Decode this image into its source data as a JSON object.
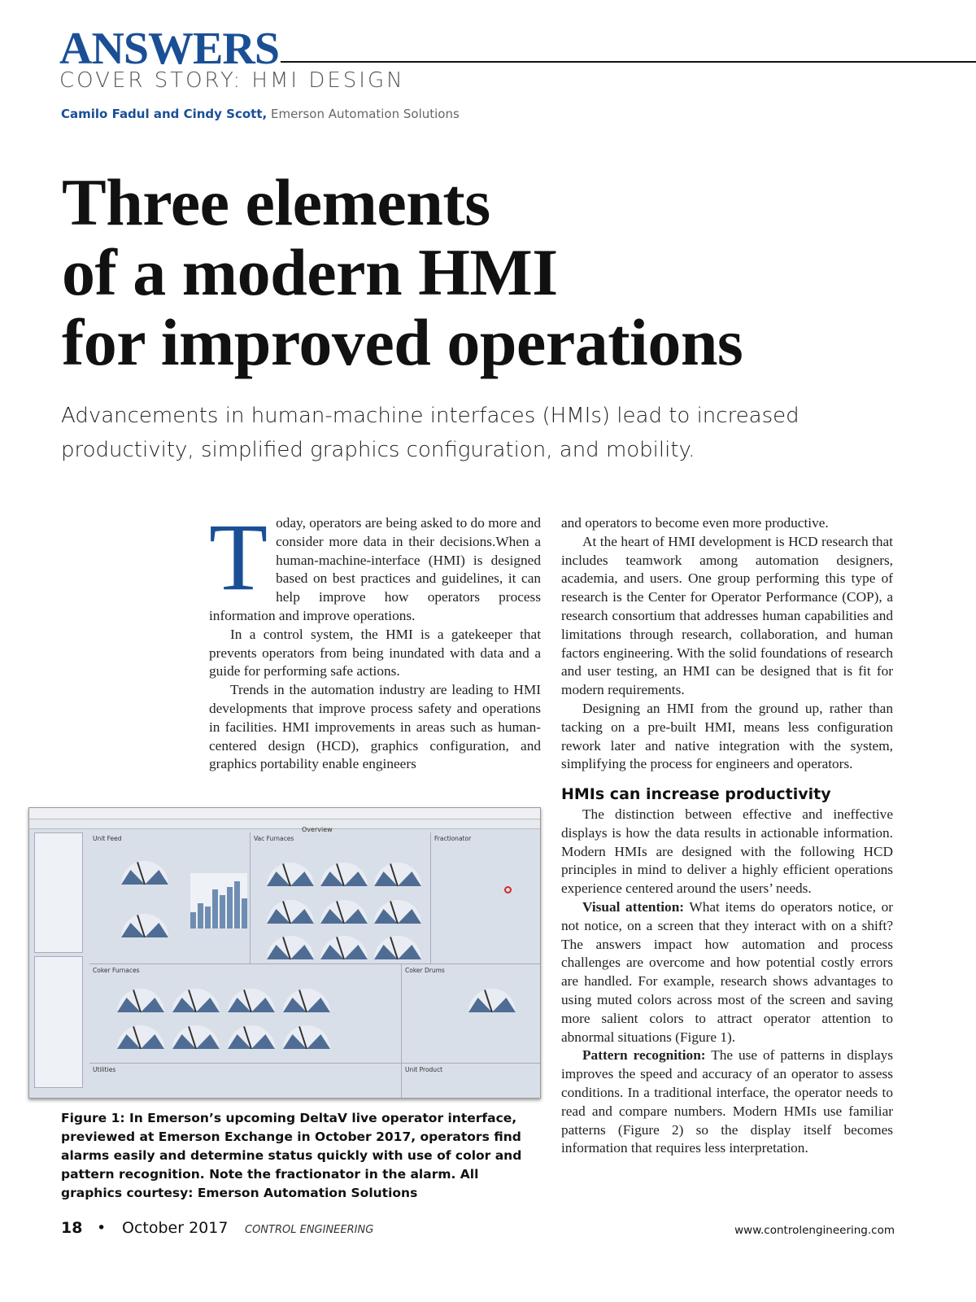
{
  "header": {
    "section": "ANSWERS",
    "kicker": "COVER STORY: HMI DESIGN",
    "authors": "Camilo Fadul and Cindy Scott,",
    "affiliation": "Emerson Automation Solutions"
  },
  "article": {
    "title_lines": [
      "Three elements",
      "of a modern HMI",
      "for improved operations"
    ],
    "deck": "Advancements in human-machine interfaces (HMIs) lead to increased productivity, simplified graphics configuration, and mobility.",
    "drop_cap": "T",
    "left_paragraphs": [
      "oday, operators are being asked to do more and consider more data in their decisions.When a human-machine-interface (HMI) is designed based on best practices and guidelines, it can help improve how operators process information and improve operations.",
      "In a control system, the HMI is a gatekeeper that prevents operators from being inundated with data and a guide for performing safe actions.",
      "Trends in the automation industry are leading to HMI developments that improve process safety and operations in facilities. HMI improvements in areas such as human-centered design (HCD), graphics configuration, and graphics portability enable engineers"
    ],
    "right_paragraphs": [
      "and operators to become even more productive.",
      "At the heart of HMI development is HCD research that includes teamwork among automation designers, academia, and users. One group performing this type of research is the Center for Operator Performance (COP), a research consortium that addresses human capabilities and limitations through research, collaboration, and human factors engineering. With the solid foundations of research and user testing, an HMI can be designed that is fit for modern requirements.",
      "Designing an HMI from the ground up, rather than tacking on a pre-built HMI, means less configuration rework later and native integration with the system, simplifying the process for engineers and operators."
    ],
    "subhead": "HMIs can increase productivity",
    "sub_paragraphs": [
      {
        "lead": "",
        "text": "The distinction between effective and ineffective displays is how the data results in actionable information. Modern HMIs are designed with the following HCD principles in mind to deliver a highly efficient operations experience centered around the users’ needs."
      },
      {
        "lead": "Visual attention:",
        "text": " What items do operators notice, or not notice, on a screen that they interact with on a shift? The answers impact how automation and process challenges are overcome and how potential costly errors are handled. For example, research shows advantages to using muted colors across most of the screen and saving more salient colors to attract operator attention to abnormal situations (Figure 1)."
      },
      {
        "lead": "Pattern recognition:",
        "text": " The use of patterns in displays improves the speed and accuracy of an operator to assess conditions. In a traditional interface, the operator needs to read and compare numbers. Modern HMIs use familiar patterns (Figure 2) so the display itself becomes information that requires less interpretation."
      }
    ]
  },
  "figure": {
    "screen_title": "Overview",
    "panels": [
      "Unit Feed",
      "Vac Furnaces",
      "Fractionator",
      "Coker Furnaces",
      "Coker Drums",
      "Utilities",
      "Unit Product"
    ],
    "caption": "Figure 1: In Emerson’s upcoming DeltaV live operator interface, previewed at Emerson Exchange in October 2017, operators find alarms easily and determine status quickly with use of color and pattern recognition. Note the fractionator in the alarm. All graphics courtesy: Emerson Automation Solutions",
    "alarm_color": "#d42a2a"
  },
  "footer": {
    "page": "18",
    "bullet": "•",
    "date": "October 2017",
    "magazine": "CONTROL ENGINEERING",
    "url": "www.controlengineering.com"
  }
}
